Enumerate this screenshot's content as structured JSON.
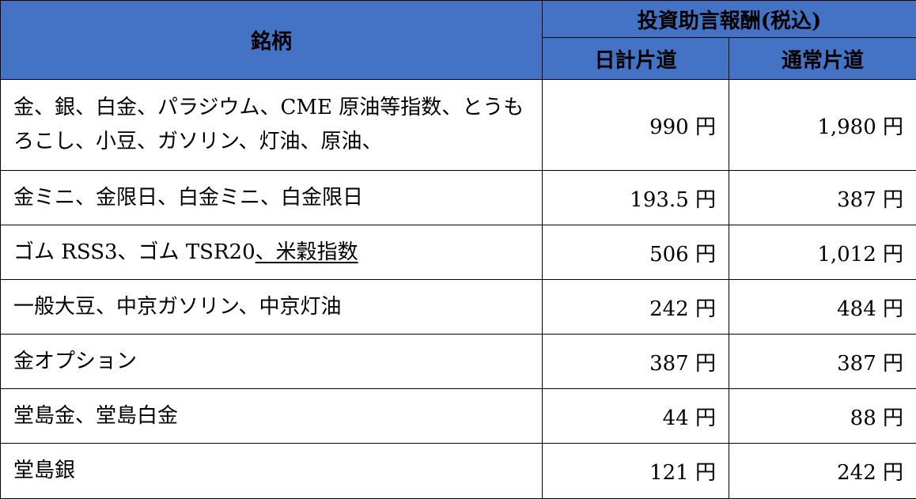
{
  "header": {
    "name": "銘柄",
    "fee_group": "投資助言報酬(税込)",
    "day_trade": "日計片道",
    "normal": "通常片道"
  },
  "accent_color": "#4472C4",
  "rows": [
    {
      "name": "金、銀、白金、パラジウム、CME 原油等指数、とうもろこし、小豆、ガソリン、灯油、原油、",
      "name_underlined": "",
      "day_trade": "990 円",
      "normal": "1,980 円"
    },
    {
      "name": "金ミニ、金限日、白金ミニ、白金限日",
      "name_underlined": "",
      "day_trade": "193.5 円",
      "normal": "387 円"
    },
    {
      "name": "ゴム RSS3、ゴム TSR20",
      "name_underlined": "、米穀指数",
      "day_trade": "506 円",
      "normal": "1,012 円"
    },
    {
      "name": "一般大豆、中京ガソリン、中京灯油",
      "name_underlined": "",
      "day_trade": "242 円",
      "normal": "484 円"
    },
    {
      "name": "金オプション",
      "name_underlined": "",
      "day_trade": "387 円",
      "normal": "387 円"
    },
    {
      "name": "堂島金、堂島白金",
      "name_underlined": "",
      "day_trade": "44 円",
      "normal": "88 円"
    },
    {
      "name": "堂島銀",
      "name_underlined": "",
      "day_trade": "121 円",
      "normal": "242 円"
    }
  ]
}
